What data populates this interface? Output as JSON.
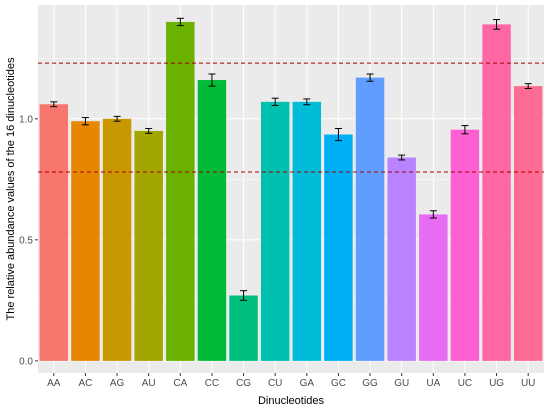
{
  "chart_data": {
    "type": "bar",
    "xlabel": "Dinucleotides",
    "ylabel": "The relative abundance values of the 16 dinucleotides",
    "ylim": [
      -0.05,
      1.47
    ],
    "yticks": [
      "0.0",
      "0.5",
      "1.0"
    ],
    "grid": true,
    "legend": "none",
    "categories": [
      "AA",
      "AC",
      "AG",
      "AU",
      "CA",
      "CC",
      "CG",
      "CU",
      "GA",
      "GC",
      "GG",
      "GU",
      "UA",
      "UC",
      "UG",
      "UU"
    ],
    "values": [
      1.06,
      0.99,
      1.0,
      0.95,
      1.4,
      1.16,
      0.27,
      1.07,
      1.07,
      0.935,
      1.17,
      0.84,
      0.605,
      0.955,
      1.39,
      1.135
    ],
    "errors": [
      0.01,
      0.015,
      0.01,
      0.01,
      0.015,
      0.025,
      0.02,
      0.015,
      0.012,
      0.025,
      0.015,
      0.01,
      0.015,
      0.017,
      0.02,
      0.01
    ],
    "colors": [
      "#F8766D",
      "#E58700",
      "#C99800",
      "#A3A500",
      "#6BB100",
      "#00BA38",
      "#00BF7D",
      "#00C0AF",
      "#00BCD8",
      "#00B0F6",
      "#619CFF",
      "#B983FF",
      "#E76BF3",
      "#FD61D1",
      "#FF67A4",
      "#FF6C91"
    ],
    "reference_lines": [
      1.23,
      0.78
    ],
    "reference_line_color": "#A50000"
  }
}
